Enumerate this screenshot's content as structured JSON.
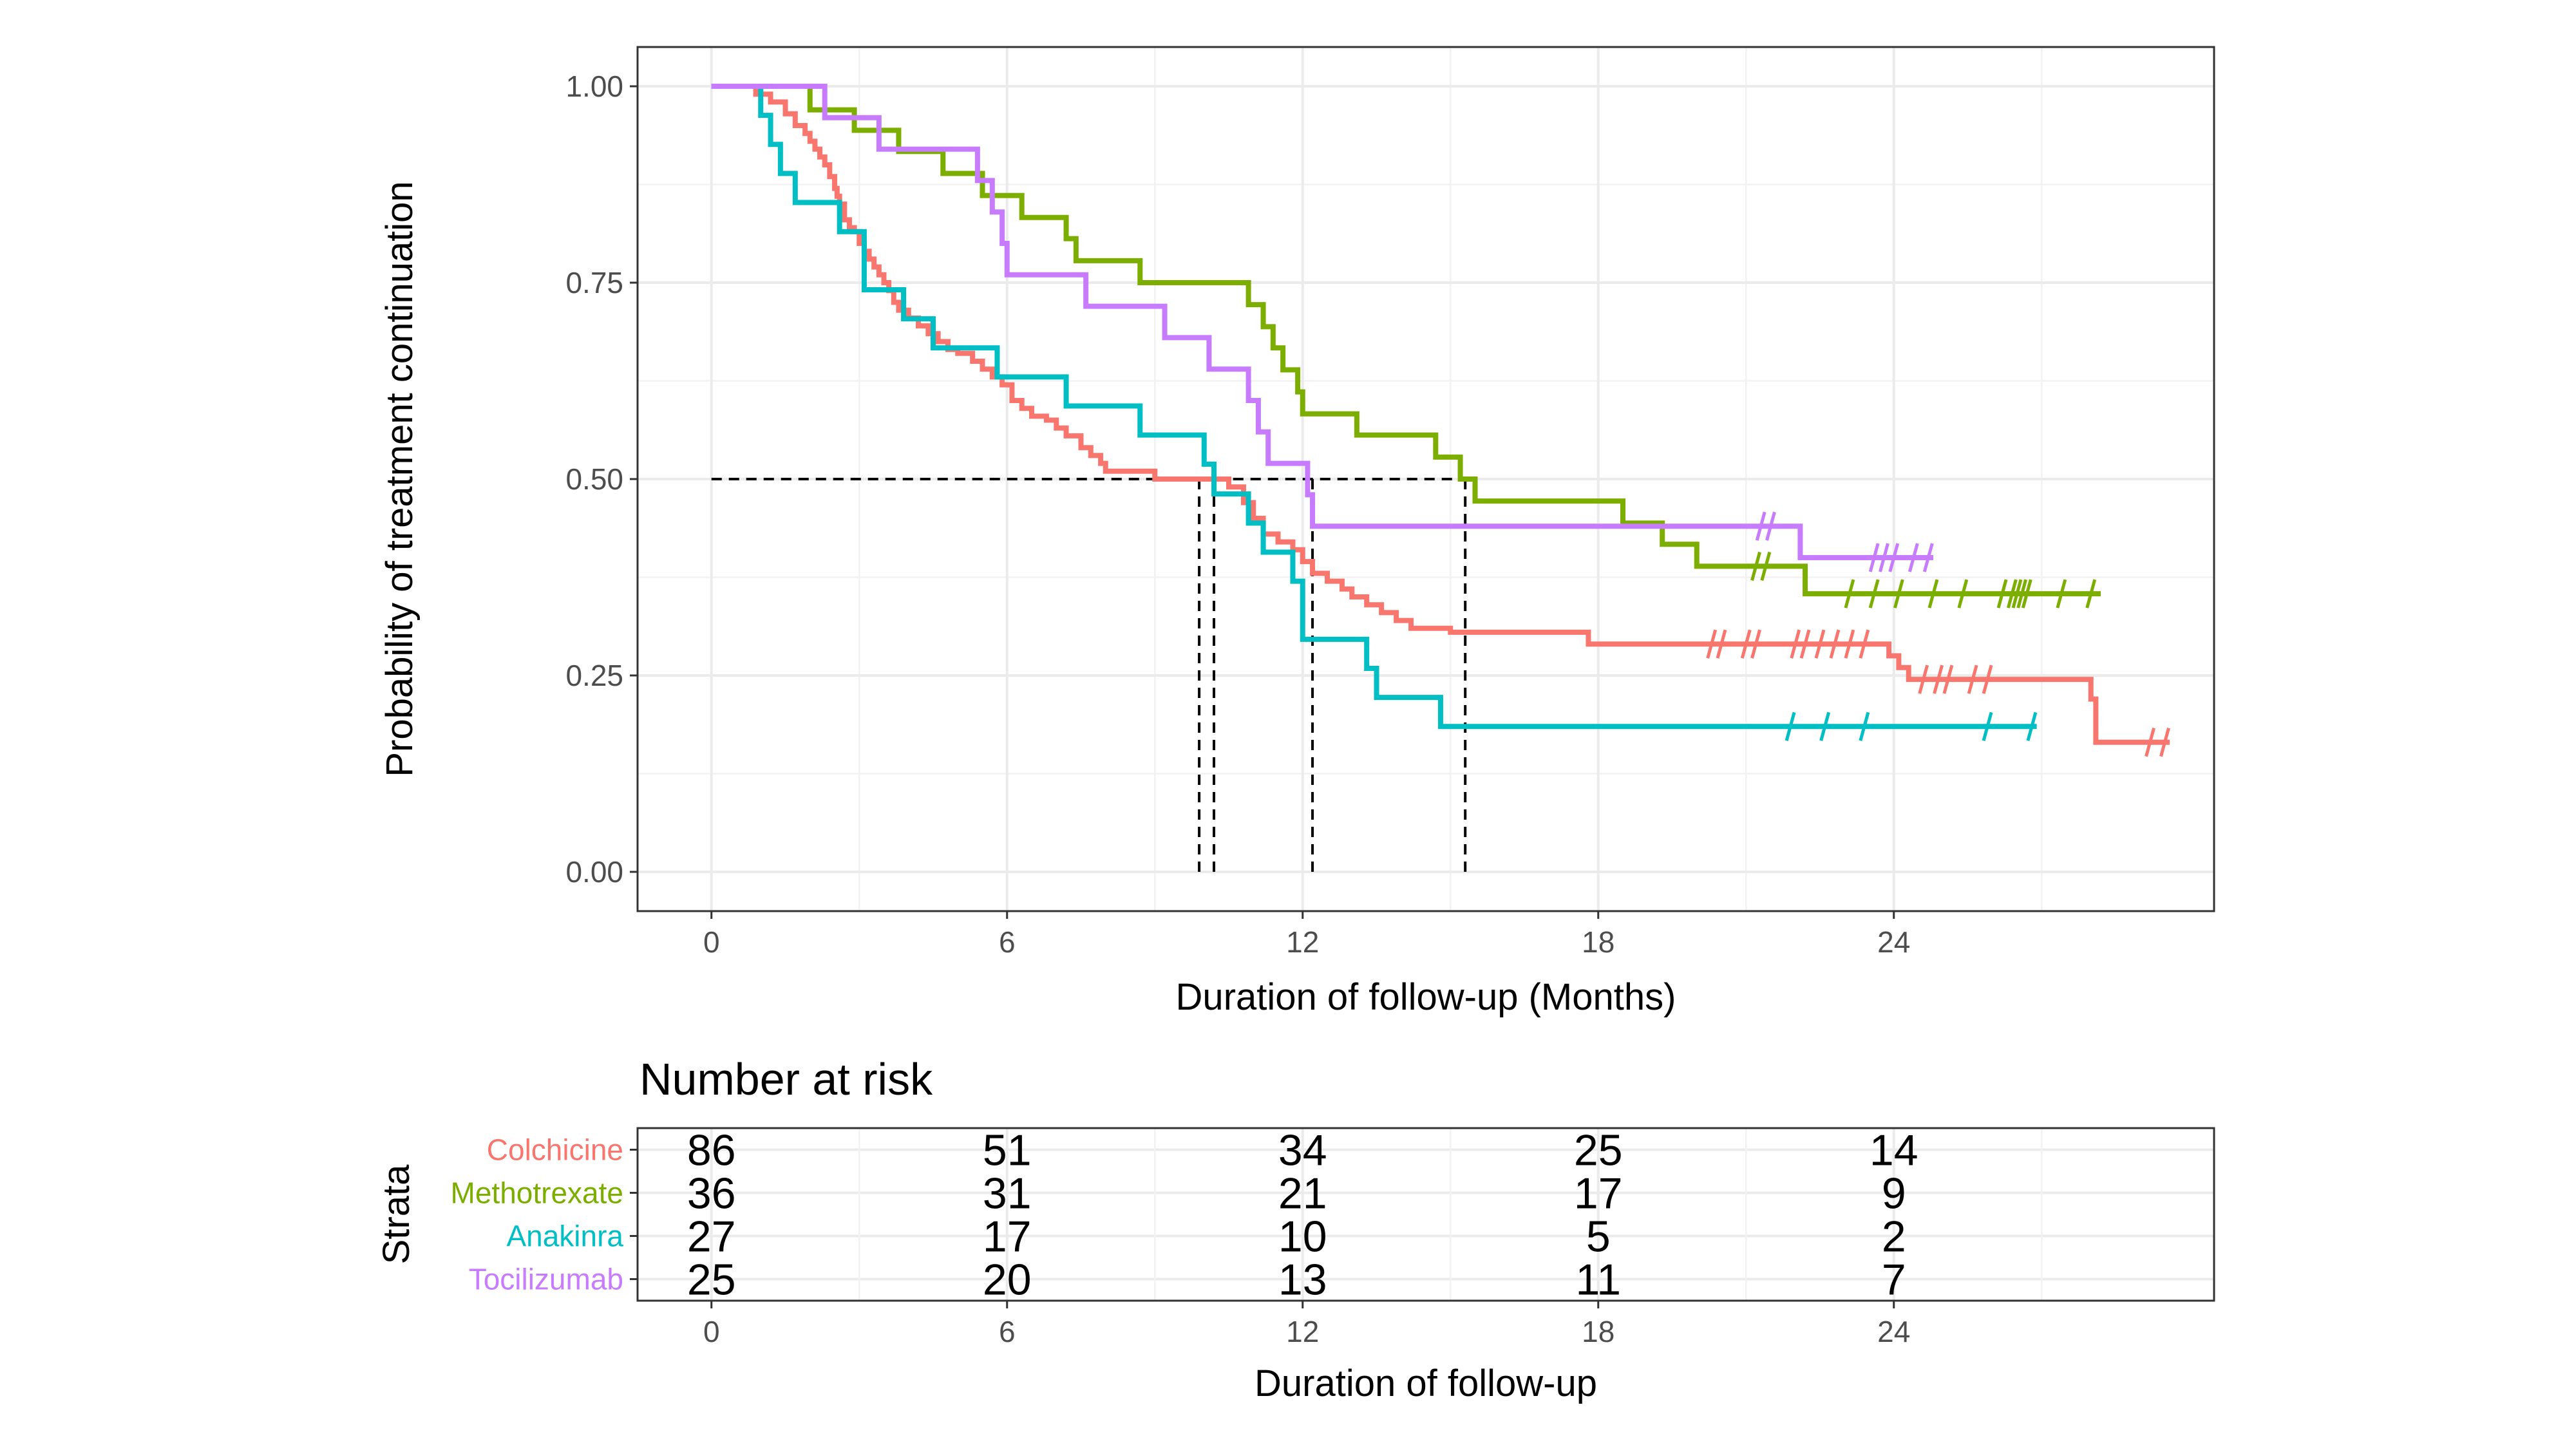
{
  "chart_data": [
    {
      "type": "line",
      "subtype": "kaplan-meier",
      "xlabel": "Duration of follow-up (Months)",
      "ylabel": "Probability of treatment continuation",
      "xlim": [
        -1.5,
        30.5
      ],
      "ylim": [
        -0.05,
        1.05
      ],
      "xticks": [
        0,
        6,
        12,
        18,
        24
      ],
      "yticks": [
        0.0,
        0.25,
        0.5,
        0.75,
        1.0
      ],
      "ytick_labels": [
        "0.00",
        "0.25",
        "0.50",
        "0.75",
        "1.00"
      ],
      "grid": true,
      "legend": "none",
      "median_reference": {
        "y": 0.5,
        "x_values": [
          9.9,
          10.2,
          12.2,
          15.3
        ]
      },
      "series": [
        {
          "name": "Colchicine",
          "color": "#F8766D",
          "steps": [
            [
              0,
              1.0
            ],
            [
              0.9,
              0.99
            ],
            [
              1.2,
              0.98
            ],
            [
              1.5,
              0.965
            ],
            [
              1.7,
              0.95
            ],
            [
              1.9,
              0.94
            ],
            [
              2.0,
              0.93
            ],
            [
              2.1,
              0.92
            ],
            [
              2.2,
              0.91
            ],
            [
              2.3,
              0.9
            ],
            [
              2.4,
              0.885
            ],
            [
              2.5,
              0.87
            ],
            [
              2.55,
              0.86
            ],
            [
              2.6,
              0.85
            ],
            [
              2.7,
              0.83
            ],
            [
              2.8,
              0.82
            ],
            [
              2.9,
              0.815
            ],
            [
              3.0,
              0.8
            ],
            [
              3.1,
              0.79
            ],
            [
              3.2,
              0.78
            ],
            [
              3.3,
              0.77
            ],
            [
              3.4,
              0.76
            ],
            [
              3.5,
              0.75
            ],
            [
              3.6,
              0.74
            ],
            [
              3.7,
              0.725
            ],
            [
              3.8,
              0.715
            ],
            [
              4.0,
              0.705
            ],
            [
              4.2,
              0.695
            ],
            [
              4.4,
              0.685
            ],
            [
              4.6,
              0.675
            ],
            [
              4.8,
              0.665
            ],
            [
              5.0,
              0.66
            ],
            [
              5.3,
              0.65
            ],
            [
              5.5,
              0.64
            ],
            [
              5.7,
              0.63
            ],
            [
              5.9,
              0.62
            ],
            [
              6.1,
              0.6
            ],
            [
              6.3,
              0.59
            ],
            [
              6.5,
              0.58
            ],
            [
              6.8,
              0.575
            ],
            [
              7.0,
              0.565
            ],
            [
              7.2,
              0.555
            ],
            [
              7.5,
              0.54
            ],
            [
              7.7,
              0.53
            ],
            [
              7.9,
              0.52
            ],
            [
              8.0,
              0.51
            ],
            [
              9.0,
              0.5
            ],
            [
              10.5,
              0.49
            ],
            [
              10.8,
              0.47
            ],
            [
              11.0,
              0.45
            ],
            [
              11.2,
              0.43
            ],
            [
              11.5,
              0.42
            ],
            [
              11.8,
              0.41
            ],
            [
              12.0,
              0.395
            ],
            [
              12.2,
              0.38
            ],
            [
              12.5,
              0.37
            ],
            [
              12.8,
              0.36
            ],
            [
              13.0,
              0.35
            ],
            [
              13.3,
              0.34
            ],
            [
              13.6,
              0.33
            ],
            [
              13.9,
              0.32
            ],
            [
              14.2,
              0.31
            ],
            [
              15.0,
              0.305
            ],
            [
              17.8,
              0.29
            ],
            [
              23.9,
              0.275
            ],
            [
              24.1,
              0.26
            ],
            [
              24.3,
              0.245
            ],
            [
              28.0,
              0.22
            ],
            [
              28.1,
              0.165
            ]
          ],
          "end": 29.6,
          "censored": [
            [
              20.3,
              0.29
            ],
            [
              20.5,
              0.29
            ],
            [
              21.0,
              0.29
            ],
            [
              21.2,
              0.29
            ],
            [
              22.0,
              0.29
            ],
            [
              22.2,
              0.29
            ],
            [
              22.5,
              0.29
            ],
            [
              22.8,
              0.29
            ],
            [
              23.1,
              0.29
            ],
            [
              23.4,
              0.29
            ],
            [
              24.6,
              0.245
            ],
            [
              24.9,
              0.245
            ],
            [
              25.1,
              0.245
            ],
            [
              25.6,
              0.245
            ],
            [
              25.9,
              0.245
            ],
            [
              29.2,
              0.165
            ],
            [
              29.5,
              0.165
            ]
          ]
        },
        {
          "name": "Methotrexate",
          "color": "#7CAE00",
          "steps": [
            [
              0,
              1.0
            ],
            [
              2.0,
              0.97
            ],
            [
              2.9,
              0.944
            ],
            [
              3.8,
              0.917
            ],
            [
              4.7,
              0.889
            ],
            [
              5.5,
              0.861
            ],
            [
              6.3,
              0.833
            ],
            [
              7.2,
              0.806
            ],
            [
              7.4,
              0.778
            ],
            [
              8.7,
              0.75
            ],
            [
              10.9,
              0.722
            ],
            [
              11.2,
              0.694
            ],
            [
              11.4,
              0.667
            ],
            [
              11.6,
              0.639
            ],
            [
              11.9,
              0.611
            ],
            [
              12.0,
              0.583
            ],
            [
              13.1,
              0.556
            ],
            [
              14.7,
              0.528
            ],
            [
              15.2,
              0.5
            ],
            [
              15.5,
              0.472
            ],
            [
              18.5,
              0.444
            ],
            [
              19.3,
              0.417
            ],
            [
              20.0,
              0.389
            ],
            [
              22.2,
              0.354
            ]
          ],
          "end": 28.2,
          "censored": [
            [
              21.2,
              0.389
            ],
            [
              21.4,
              0.389
            ],
            [
              23.1,
              0.354
            ],
            [
              23.6,
              0.354
            ],
            [
              24.1,
              0.354
            ],
            [
              24.8,
              0.354
            ],
            [
              25.4,
              0.354
            ],
            [
              26.2,
              0.354
            ],
            [
              26.4,
              0.354
            ],
            [
              26.5,
              0.354
            ],
            [
              26.6,
              0.354
            ],
            [
              26.7,
              0.354
            ],
            [
              27.4,
              0.354
            ],
            [
              28.0,
              0.354
            ]
          ]
        },
        {
          "name": "Anakinra",
          "color": "#00BFC4",
          "steps": [
            [
              0,
              1.0
            ],
            [
              1.0,
              0.963
            ],
            [
              1.2,
              0.926
            ],
            [
              1.4,
              0.889
            ],
            [
              1.7,
              0.852
            ],
            [
              2.6,
              0.815
            ],
            [
              3.1,
              0.741
            ],
            [
              3.9,
              0.704
            ],
            [
              4.5,
              0.667
            ],
            [
              5.8,
              0.63
            ],
            [
              7.2,
              0.593
            ],
            [
              8.7,
              0.556
            ],
            [
              10.0,
              0.519
            ],
            [
              10.2,
              0.481
            ],
            [
              10.9,
              0.444
            ],
            [
              11.2,
              0.407
            ],
            [
              11.8,
              0.37
            ],
            [
              12.0,
              0.296
            ],
            [
              13.3,
              0.259
            ],
            [
              13.5,
              0.222
            ],
            [
              14.8,
              0.185
            ]
          ],
          "end": 26.9,
          "censored": [
            [
              21.9,
              0.185
            ],
            [
              22.6,
              0.185
            ],
            [
              23.4,
              0.185
            ],
            [
              25.9,
              0.185
            ],
            [
              26.8,
              0.185
            ]
          ]
        },
        {
          "name": "Tocilizumab",
          "color": "#C77CFF",
          "steps": [
            [
              0,
              1.0
            ],
            [
              2.3,
              0.96
            ],
            [
              3.4,
              0.92
            ],
            [
              5.4,
              0.88
            ],
            [
              5.7,
              0.84
            ],
            [
              5.9,
              0.8
            ],
            [
              6.0,
              0.76
            ],
            [
              7.6,
              0.72
            ],
            [
              9.2,
              0.68
            ],
            [
              10.1,
              0.64
            ],
            [
              10.9,
              0.6
            ],
            [
              11.1,
              0.56
            ],
            [
              11.3,
              0.52
            ],
            [
              12.1,
              0.48
            ],
            [
              12.2,
              0.44
            ],
            [
              22.1,
              0.4
            ]
          ],
          "end": 24.8,
          "censored": [
            [
              21.3,
              0.44
            ],
            [
              21.5,
              0.44
            ],
            [
              23.6,
              0.4
            ],
            [
              23.8,
              0.4
            ],
            [
              24.0,
              0.4
            ],
            [
              24.4,
              0.4
            ],
            [
              24.7,
              0.4
            ]
          ]
        }
      ]
    },
    {
      "type": "table",
      "title": "Number at risk",
      "xlabel": "Duration of follow-up",
      "ylabel": "Strata",
      "x": [
        0,
        6,
        12,
        18,
        24
      ],
      "xticks": [
        0,
        6,
        12,
        18,
        24
      ],
      "rows": [
        {
          "name": "Colchicine",
          "color": "#F8766D",
          "values": [
            86,
            51,
            34,
            25,
            14
          ]
        },
        {
          "name": "Methotrexate",
          "color": "#7CAE00",
          "values": [
            36,
            31,
            21,
            17,
            9
          ]
        },
        {
          "name": "Anakinra",
          "color": "#00BFC4",
          "values": [
            27,
            17,
            10,
            5,
            2
          ]
        },
        {
          "name": "Tocilizumab",
          "color": "#C77CFF",
          "values": [
            25,
            20,
            13,
            11,
            7
          ]
        }
      ]
    }
  ]
}
